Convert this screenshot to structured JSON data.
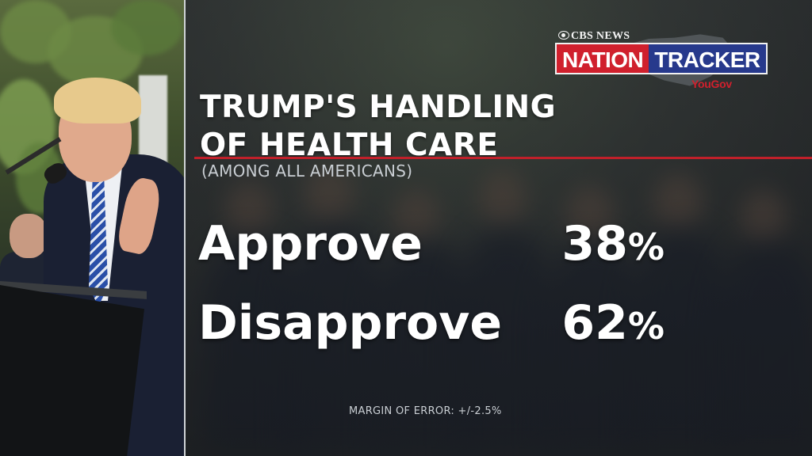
{
  "brand": {
    "network": "CBS NEWS",
    "product_part1": "NATION",
    "product_part2": "TRACKER",
    "partner": "YouGov",
    "colors": {
      "red": "#d0202d",
      "blue": "#27398c",
      "rule_red": "#c0202a"
    }
  },
  "graphic": {
    "title_line1": "TRUMP'S HANDLING",
    "title_line2": "OF HEALTH CARE",
    "subtitle": "(AMONG ALL AMERICANS)"
  },
  "results": [
    {
      "label": "Approve",
      "value": "38",
      "unit": "%"
    },
    {
      "label": "Disapprove",
      "value": "62",
      "unit": "%"
    }
  ],
  "footnote": "MARGIN OF ERROR: +/-2.5%",
  "icons": [
    "cbs-eye-icon",
    "us-map-icon"
  ]
}
